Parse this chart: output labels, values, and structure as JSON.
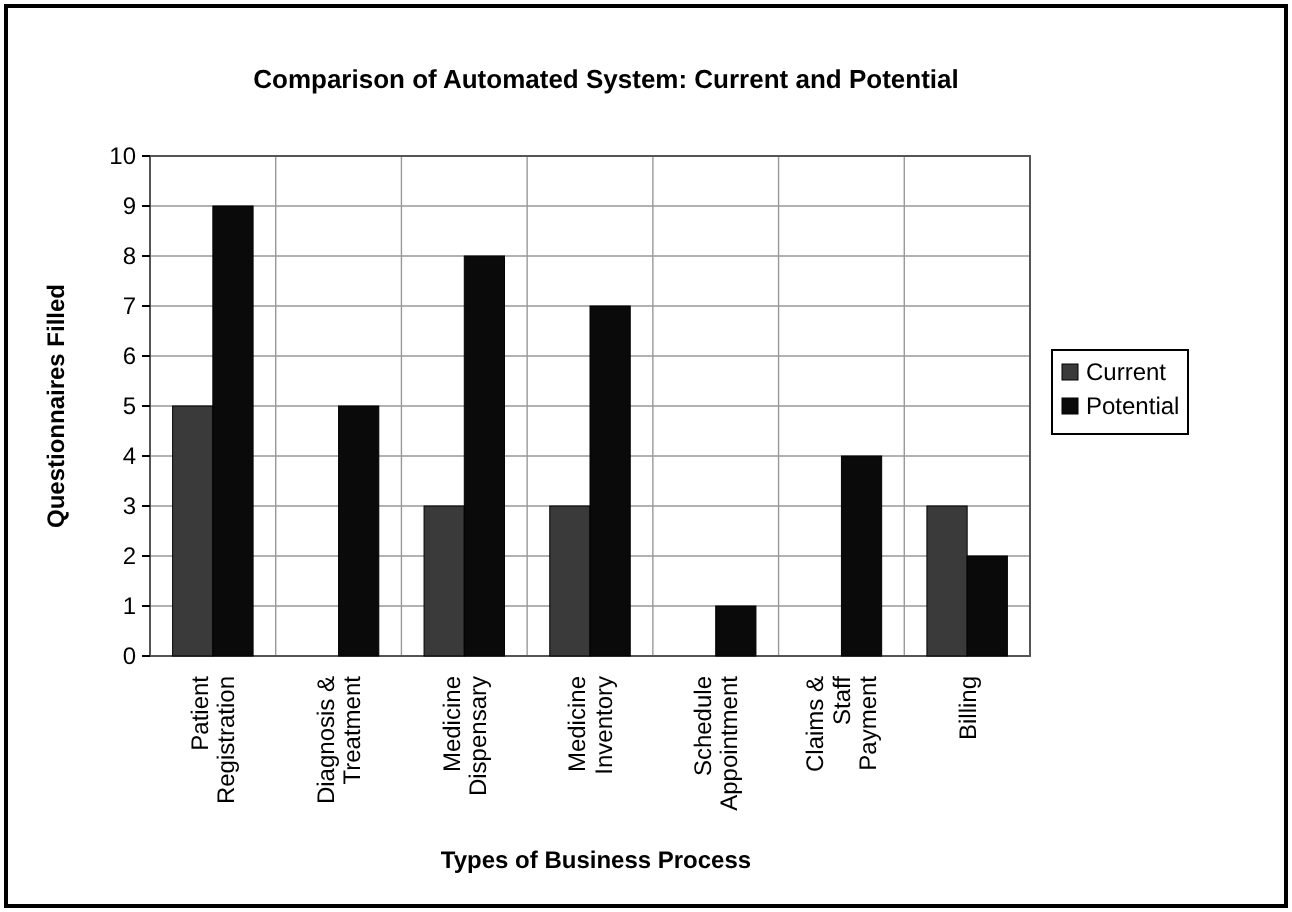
{
  "chart_data": {
    "type": "bar",
    "title": "Comparison of Automated System: Current and Potential",
    "xlabel": "Types of Business Process",
    "ylabel": "Questionnaires Filled",
    "categories": [
      "Patient\nRegistration",
      "Diagnosis &\nTreatment",
      "Medicine\nDispensary",
      "Medicine\nInventory",
      "Schedule\nAppointment",
      "Claims &\nStaff\nPayment",
      "Billing"
    ],
    "series": [
      {
        "name": "Current",
        "color": "#3a3a3a",
        "values": [
          5,
          0,
          3,
          3,
          0,
          0,
          3
        ]
      },
      {
        "name": "Potential",
        "color": "#0a0a0a",
        "values": [
          9,
          5,
          8,
          7,
          1,
          4,
          2
        ]
      }
    ],
    "ylim": [
      0,
      10
    ],
    "yticks": [
      0,
      1,
      2,
      3,
      4,
      5,
      6,
      7,
      8,
      9,
      10
    ],
    "grid": true,
    "legend": "right"
  }
}
